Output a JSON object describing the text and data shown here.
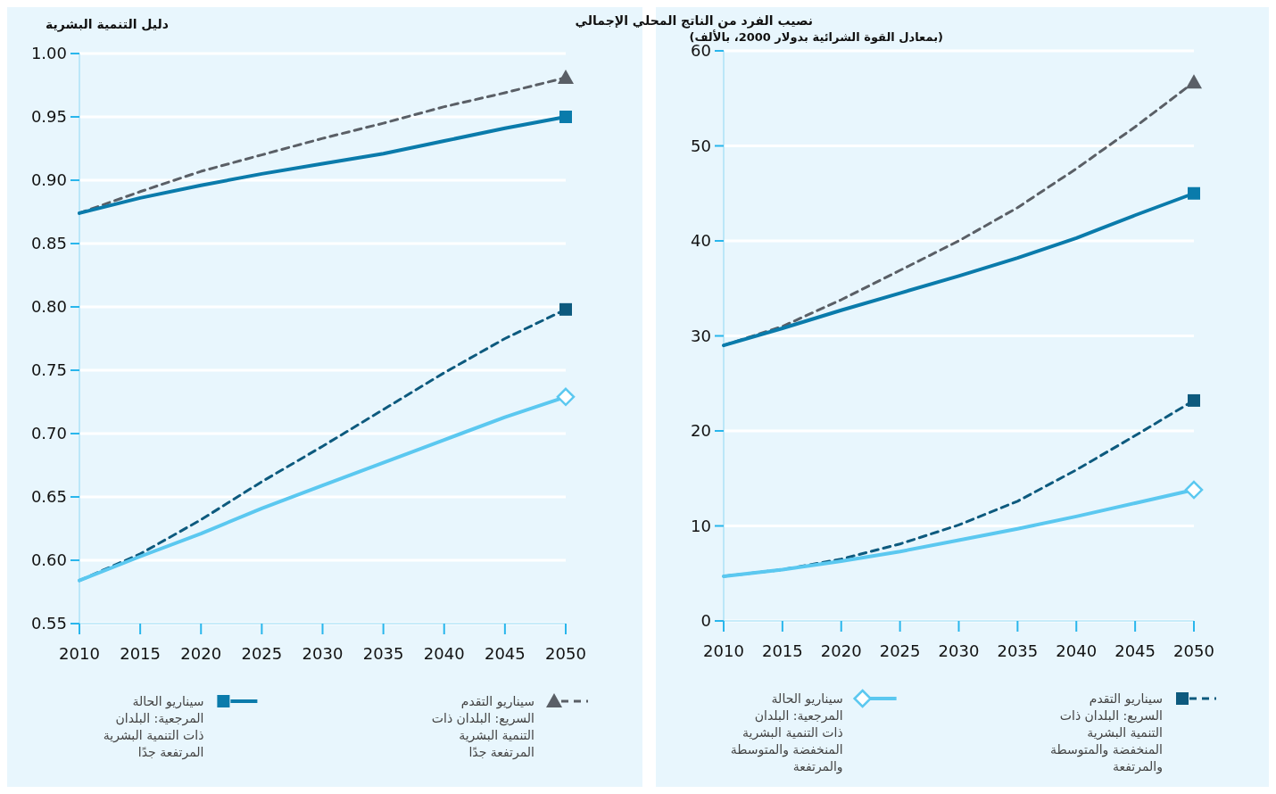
{
  "chart_data": [
    {
      "type": "line",
      "title": "دليل التنمية البشرية",
      "x": [
        2010,
        2015,
        2020,
        2025,
        2030,
        2035,
        2040,
        2045,
        2050
      ],
      "xlim": [
        2010,
        2050
      ],
      "xticks": [
        2010,
        2015,
        2020,
        2025,
        2030,
        2035,
        2040,
        2045,
        2050
      ],
      "ylim": [
        0.55,
        1.0
      ],
      "yticks": [
        {
          "value": 0.55,
          "label": "0.55"
        },
        {
          "value": 0.6,
          "label": "0.60"
        },
        {
          "value": 0.65,
          "label": "0.65"
        },
        {
          "value": 0.7,
          "label": "0.70"
        },
        {
          "value": 0.75,
          "label": "0.75"
        },
        {
          "value": 0.8,
          "label": "0.80"
        },
        {
          "value": 0.85,
          "label": "0.85"
        },
        {
          "value": 0.9,
          "label": "0.90"
        },
        {
          "value": 0.95,
          "label": "0.95"
        },
        {
          "value": 1.0,
          "label": "1.00"
        }
      ],
      "grid": "y",
      "legend": "bottom",
      "series": [
        {
          "name": "سيناريو التقدم السريع: البلدان ذات التنمية البشرية المرتفعة جدًا",
          "color": "#5a5f66",
          "line_style": "dashed",
          "values": [
            0.874,
            0.891,
            0.907,
            0.92,
            0.933,
            0.945,
            0.958,
            0.969,
            0.981
          ]
        },
        {
          "name": "سيناريو الحالة المرجعية: البلدان ذات التنمية البشرية المرتفعة جدًا",
          "color": "#0a7bab",
          "line_style": "solid",
          "values": [
            0.874,
            0.886,
            0.896,
            0.905,
            0.913,
            0.921,
            0.931,
            0.941,
            0.95
          ]
        },
        {
          "color": "#0d5a7e",
          "line_style": "dashed",
          "values": [
            0.584,
            0.605,
            0.632,
            0.662,
            0.69,
            0.719,
            0.748,
            0.775,
            0.798
          ]
        },
        {
          "color": "#5bc8f0",
          "line_style": "solid",
          "values": [
            0.584,
            0.603,
            0.621,
            0.641,
            0.659,
            0.677,
            0.695,
            0.713,
            0.729
          ]
        }
      ]
    },
    {
      "type": "line",
      "title": "نصيب الفرد من الناتج المحلي الإجمالي",
      "subtitle": "(بمعادل القوة الشرائية بدولار 2000، بالألف)",
      "x": [
        2010,
        2015,
        2020,
        2025,
        2030,
        2035,
        2040,
        2045,
        2050
      ],
      "xlim": [
        2010,
        2050
      ],
      "xticks": [
        2010,
        2015,
        2020,
        2025,
        2030,
        2035,
        2040,
        2045,
        2050
      ],
      "ylim": [
        0,
        60
      ],
      "yticks": [
        0,
        10,
        20,
        30,
        40,
        50,
        60
      ],
      "grid": "y",
      "legend": "bottom",
      "series": [
        {
          "color": "#5a5f66",
          "line_style": "dashed",
          "values": [
            29.0,
            31.0,
            33.8,
            36.9,
            40.0,
            43.5,
            47.6,
            52.0,
            56.7
          ]
        },
        {
          "color": "#0a7bab",
          "line_style": "solid",
          "values": [
            29.0,
            30.8,
            32.7,
            34.5,
            36.3,
            38.2,
            40.3,
            42.7,
            45.0
          ]
        },
        {
          "name": "سيناريو التقدم السريع: البلدان ذات التنمية البشرية المنخفضة والمتوسطة والمرتفعة",
          "color": "#0d5a7e",
          "line_style": "dashed",
          "values": [
            4.7,
            5.4,
            6.5,
            8.1,
            10.1,
            12.6,
            15.9,
            19.5,
            23.2
          ]
        },
        {
          "name": "سيناريو الحالة المرجعية: البلدان ذات التنمية البشرية المنخفضة والمتوسطة والمرتفعة",
          "color": "#5bc8f0",
          "line_style": "solid",
          "values": [
            4.7,
            5.4,
            6.3,
            7.3,
            8.5,
            9.7,
            11.0,
            12.4,
            13.8
          ]
        }
      ]
    }
  ]
}
